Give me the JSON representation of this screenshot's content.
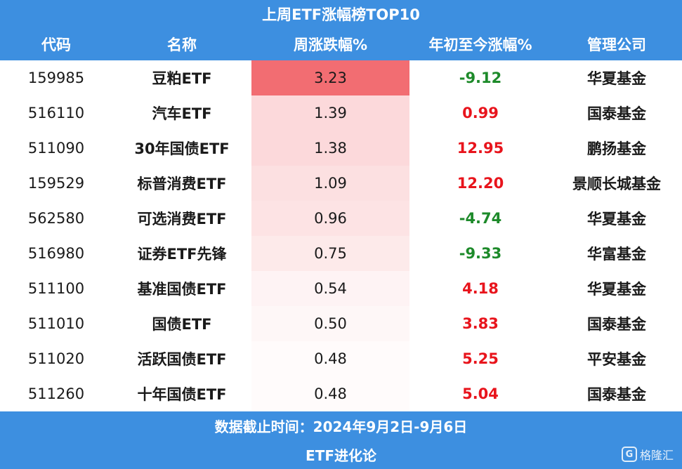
{
  "title": "上周ETF涨幅榜TOP10",
  "headers": [
    "代码",
    "名称",
    "周涨跌幅%",
    "年初至今涨幅%",
    "管理公司"
  ],
  "rows": [
    {
      "code": "159985",
      "name": "豆粕ETF",
      "weekly": "3.23",
      "ytd": "-9.12",
      "company": "华夏基金"
    },
    {
      "code": "516110",
      "name": "汽车ETF",
      "weekly": "1.39",
      "ytd": "0.99",
      "company": "国泰基金"
    },
    {
      "code": "511090",
      "name": "30年国债ETF",
      "weekly": "1.38",
      "ytd": "12.95",
      "company": "鹏扬基金"
    },
    {
      "code": "159529",
      "name": "标普消费ETF",
      "weekly": "1.09",
      "ytd": "12.20",
      "company": "景顺长城基金"
    },
    {
      "code": "562580",
      "name": "可选消费ETF",
      "weekly": "0.96",
      "ytd": "-4.74",
      "company": "华夏基金"
    },
    {
      "code": "516980",
      "name": "证券ETF先锋",
      "weekly": "0.75",
      "ytd": "-9.33",
      "company": "华富基金"
    },
    {
      "code": "511100",
      "name": "基准国债ETF",
      "weekly": "0.54",
      "ytd": "4.18",
      "company": "华夏基金"
    },
    {
      "code": "511010",
      "name": "国债ETF",
      "weekly": "0.50",
      "ytd": "3.83",
      "company": "国泰基金"
    },
    {
      "code": "511020",
      "name": "活跃国债ETF",
      "weekly": "0.48",
      "ytd": "5.25",
      "company": "平安基金"
    },
    {
      "code": "511260",
      "name": "十年国债ETF",
      "weekly": "0.48",
      "ytd": "5.04",
      "company": "国泰基金"
    }
  ],
  "footer_date": "数据截止时间：2024年9月2日-9月6日",
  "footer_brand": "ETF进化论",
  "watermark": {
    "logo_letter": "G",
    "text": "格隆汇"
  },
  "colors": {
    "header_bg": "#3d8fe0",
    "positive": "#e8141c",
    "negative": "#1d8a2a",
    "heat_max": "#f26d72"
  }
}
